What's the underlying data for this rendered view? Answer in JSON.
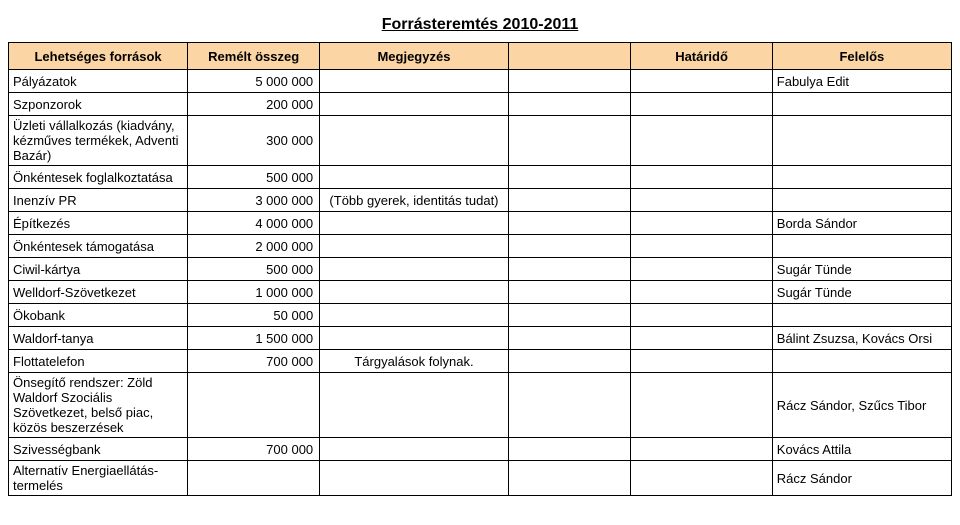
{
  "title": "Forrásteremtés 2010-2011",
  "header_bg": "#fcd5a4",
  "columns": [
    "Lehetséges források",
    "Remélt összeg",
    "Megjegyzés",
    "",
    "Határidő",
    "Felelős"
  ],
  "rows": [
    {
      "c1": "Pályázatok",
      "c2": "5 000 000",
      "c3": "",
      "c4": "",
      "c5": "",
      "c6": "Fabulya Edit"
    },
    {
      "c1": "Szponzorok",
      "c2": "200 000",
      "c3": "",
      "c4": "",
      "c5": "",
      "c6": ""
    },
    {
      "c1": "Üzleti vállalkozás (kiadvány, kézműves termékek, Adventi Bazár)",
      "c2": "300 000",
      "c3": "",
      "c4": "",
      "c5": "",
      "c6": ""
    },
    {
      "c1": "Önkéntesek foglalkoztatása",
      "c2": "500 000",
      "c3": "",
      "c4": "",
      "c5": "",
      "c6": ""
    },
    {
      "c1": "Inenzív PR",
      "c2": "3 000 000",
      "c3": "(Több gyerek, identitás tudat)",
      "c4": "",
      "c5": "",
      "c6": ""
    },
    {
      "c1": "Építkezés",
      "c2": "4 000 000",
      "c3": "",
      "c4": "",
      "c5": "",
      "c6": "Borda Sándor"
    },
    {
      "c1": "Önkéntesek támogatása",
      "c2": "2 000 000",
      "c3": "",
      "c4": "",
      "c5": "",
      "c6": ""
    },
    {
      "c1": "Ciwil-kártya",
      "c2": "500 000",
      "c3": "",
      "c4": "",
      "c5": "",
      "c6": "Sugár Tünde"
    },
    {
      "c1": "Welldorf-Szövetkezet",
      "c2": "1 000 000",
      "c3": "",
      "c4": "",
      "c5": "",
      "c6": "Sugár Tünde"
    },
    {
      "c1": "Ökobank",
      "c2": "50 000",
      "c3": "",
      "c4": "",
      "c5": "",
      "c6": ""
    },
    {
      "c1": "Waldorf-tanya",
      "c2": "1 500 000",
      "c3": "",
      "c4": "",
      "c5": "",
      "c6": "Bálint Zsuzsa, Kovács Orsi"
    },
    {
      "c1": "Flottatelefon",
      "c2": "700 000",
      "c3": "Tárgyalások folynak.",
      "c4": "",
      "c5": "",
      "c6": ""
    },
    {
      "c1": "Önsegítő rendszer: Zöld Waldorf Szociális Szövetkezet, belső piac, közös beszerzések",
      "c2": "",
      "c3": "",
      "c4": "",
      "c5": "",
      "c6": "Rácz Sándor, Szűcs Tibor"
    },
    {
      "c1": " Szivességbank",
      "c2": "700 000",
      "c3": "",
      "c4": "",
      "c5": "",
      "c6": "Kovács Attila"
    },
    {
      "c1": "Alternatív Energiaellátás-termelés",
      "c2": "",
      "c3": "",
      "c4": "",
      "c5": "",
      "c6": "Rácz Sándor"
    }
  ]
}
